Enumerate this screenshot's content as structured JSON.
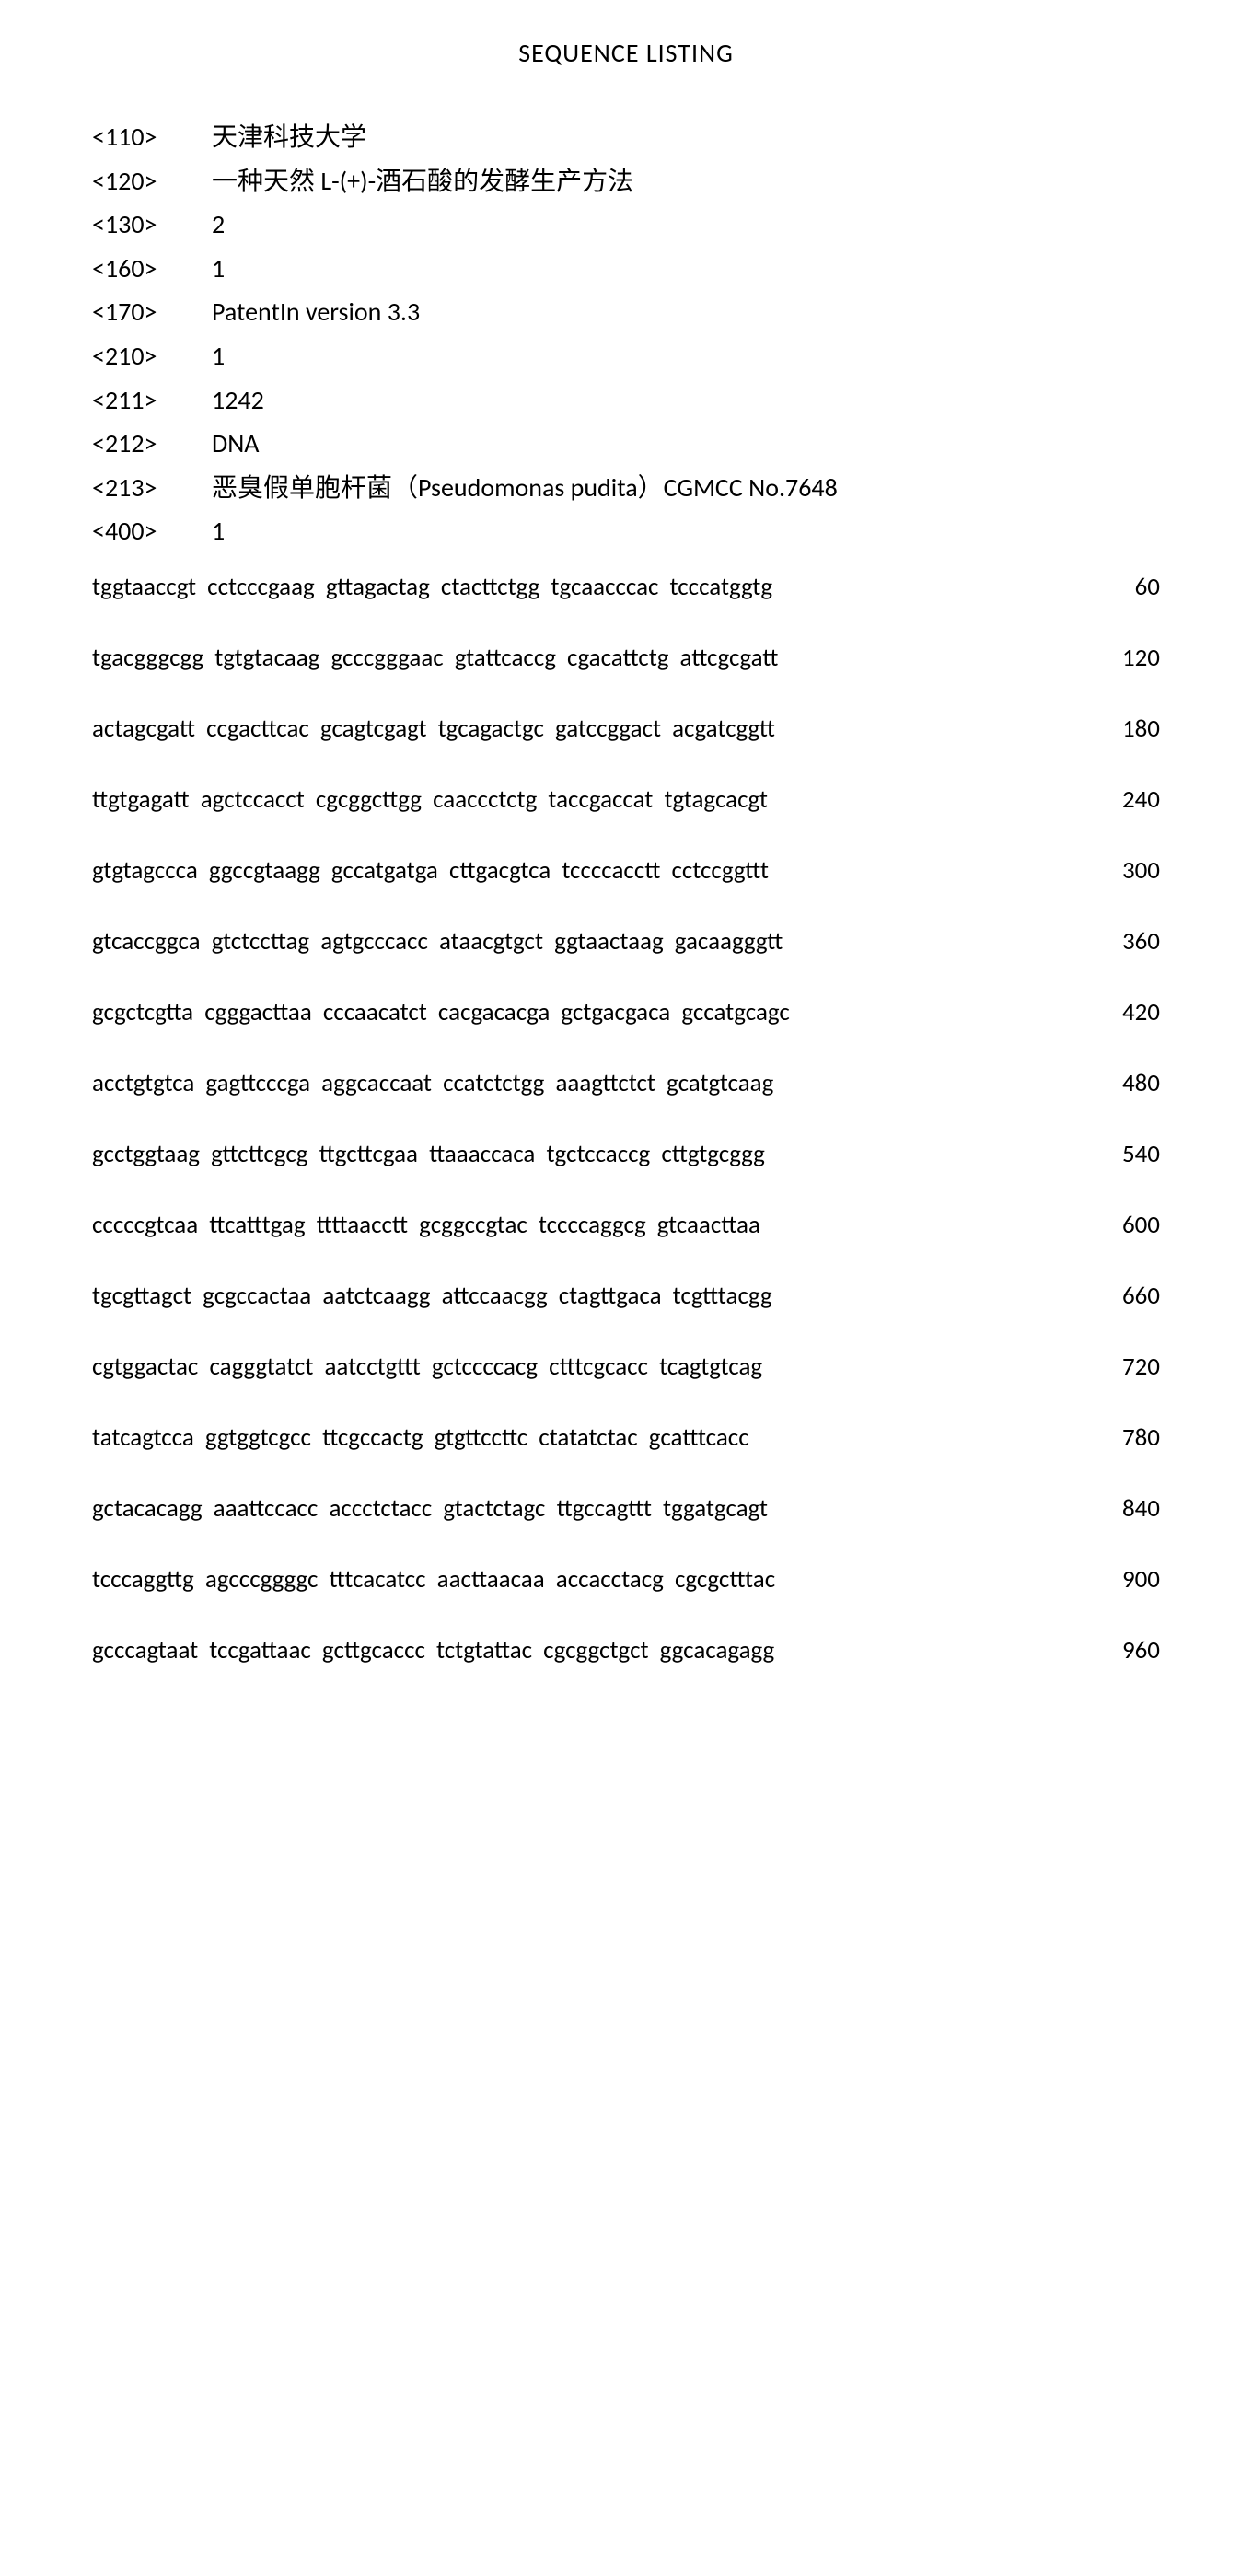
{
  "title": "SEQUENCE LISTING",
  "headers": [
    {
      "tag": "<110>",
      "value": "天津科技大学"
    },
    {
      "tag": "<120>",
      "value": "一种天然 L-(+)-酒石酸的发酵生产方法"
    },
    {
      "tag": "<130>",
      "value": "2"
    },
    {
      "tag": "<160>",
      "value": "1"
    },
    {
      "tag": "<170>",
      "value": "PatentIn version 3.3"
    },
    {
      "tag": "<210>",
      "value": "1"
    },
    {
      "tag": "<211>",
      "value": "1242"
    },
    {
      "tag": "<212>",
      "value": "DNA"
    },
    {
      "tag": "<213>",
      "value": "恶臭假单胞杆菌（Pseudomonas pudita）CGMCC No.7648"
    },
    {
      "tag": "<400>",
      "value": "1"
    }
  ],
  "sequence": [
    {
      "text": "tggtaaccgt cctcccgaag gttagactag ctacttctgg tgcaacccac tcccatggtg",
      "num": "60"
    },
    {
      "text": "tgacgggcgg tgtgtacaag gcccgggaac gtattcaccg cgacattctg attcgcgatt",
      "num": "120"
    },
    {
      "text": "actagcgatt ccgacttcac gcagtcgagt tgcagactgc gatccggact acgatcggtt",
      "num": "180"
    },
    {
      "text": "ttgtgagatt agctccacct cgcggcttgg caaccctctg taccgaccat tgtagcacgt",
      "num": "240"
    },
    {
      "text": "gtgtagccca ggccgtaagg gccatgatga cttgacgtca tccccacctt cctccggttt",
      "num": "300"
    },
    {
      "text": "gtcaccggca gtctccttag agtgcccacc ataacgtgct ggtaactaag gacaagggtt",
      "num": "360"
    },
    {
      "text": "gcgctcgtta cgggacttaa cccaacatct cacgacacga gctgacgaca gccatgcagc",
      "num": "420"
    },
    {
      "text": "acctgtgtca gagttcccga aggcaccaat ccatctctgg aaagttctct gcatgtcaag",
      "num": "480"
    },
    {
      "text": "gcctggtaag gttcttcgcg ttgcttcgaa ttaaaccaca tgctccaccg cttgtgcggg",
      "num": "540"
    },
    {
      "text": "cccccgtcaa ttcatttgag ttttaacctt gcggccgtac tccccaggcg gtcaacttaa",
      "num": "600"
    },
    {
      "text": "tgcgttagct gcgccactaa aatctcaagg attccaacgg ctagttgaca tcgtttacgg",
      "num": "660"
    },
    {
      "text": "cgtggactac cagggtatct aatcctgttt gctccccacg ctttcgcacc tcagtgtcag",
      "num": "720"
    },
    {
      "text": "tatcagtcca ggtggtcgcc ttcgccactg gtgttccttc ctatatctac gcatttcacc",
      "num": "780"
    },
    {
      "text": "gctacacagg aaattccacc accctctacc gtactctagc ttgccagttt tggatgcagt",
      "num": "840"
    },
    {
      "text": "tcccaggttg agcccggggc tttcacatcc aacttaacaa accacctacg cgcgctttac",
      "num": "900"
    },
    {
      "text": "gcccagtaat tccgattaac gcttgcaccc tctgtattac cgcggctgct ggcacagagg",
      "num": "960"
    }
  ],
  "style": {
    "background_color": "#ffffff",
    "text_color": "#000000",
    "title_fontsize": 28,
    "header_fontsize": 28,
    "sequence_fontsize": 27,
    "header_tag_width": 130,
    "sequence_row_spacing": 44,
    "word_spacing": 6,
    "font_family": "Calibri, Arial, sans-serif"
  }
}
